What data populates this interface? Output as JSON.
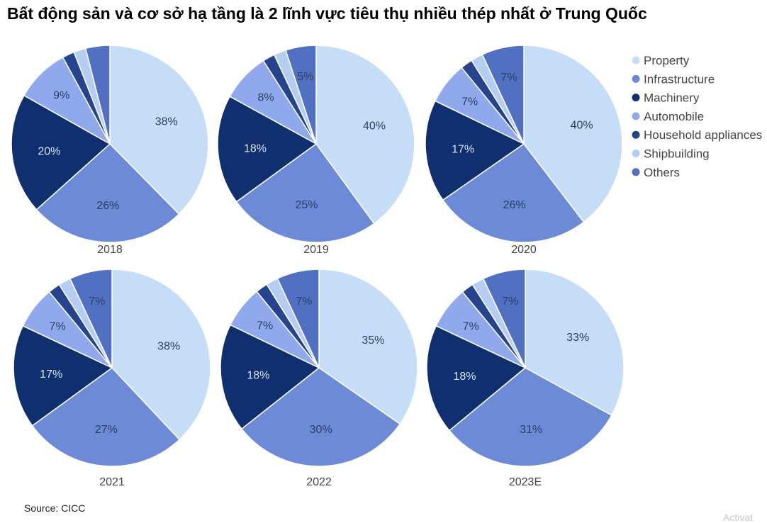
{
  "title": "Bất động sản và cơ sở hạ tầng là 2 lĩnh vực tiêu thụ nhiều thép nhất ở Trung Quốc",
  "source": "Source: CICC",
  "watermark": "Activat",
  "chart_data": {
    "type": "pie",
    "legend_position": "right",
    "categories": [
      "Property",
      "Infrastructure",
      "Machinery",
      "Automobile",
      "Household appliances",
      "Shipbuilding",
      "Others"
    ],
    "colors": [
      "#c6ddf7",
      "#6c8ad6",
      "#0f2f6e",
      "#8fa9ec",
      "#26448d",
      "#b5cdf3",
      "#5270c2"
    ],
    "pies": [
      {
        "label": "2018",
        "values": [
          38,
          26,
          20,
          9,
          2,
          2,
          4
        ],
        "data_labels": [
          "38%",
          "26%",
          "20%",
          "9%",
          "",
          "",
          ""
        ]
      },
      {
        "label": "2019",
        "values": [
          40,
          25,
          18,
          8,
          2,
          2,
          5
        ],
        "data_labels": [
          "40%",
          "25%",
          "18%",
          "8%",
          "",
          "",
          "5%"
        ]
      },
      {
        "label": "2020",
        "values": [
          40,
          26,
          17,
          7,
          2,
          2,
          7
        ],
        "data_labels": [
          "40%",
          "26%",
          "17%",
          "7%",
          "",
          "",
          "7%"
        ]
      },
      {
        "label": "2021",
        "values": [
          38,
          27,
          17,
          7,
          2,
          2,
          7
        ],
        "data_labels": [
          "38%",
          "27%",
          "17%",
          "7%",
          "",
          "",
          "7%"
        ]
      },
      {
        "label": "2022",
        "values": [
          35,
          30,
          18,
          7,
          2,
          2,
          7
        ],
        "data_labels": [
          "35%",
          "30%",
          "18%",
          "7%",
          "",
          "",
          "7%"
        ]
      },
      {
        "label": "2023E",
        "values": [
          33,
          31,
          18,
          7,
          2,
          2,
          7
        ],
        "data_labels": [
          "33%",
          "31%",
          "18%",
          "7%",
          "",
          "",
          "7%"
        ]
      }
    ]
  }
}
